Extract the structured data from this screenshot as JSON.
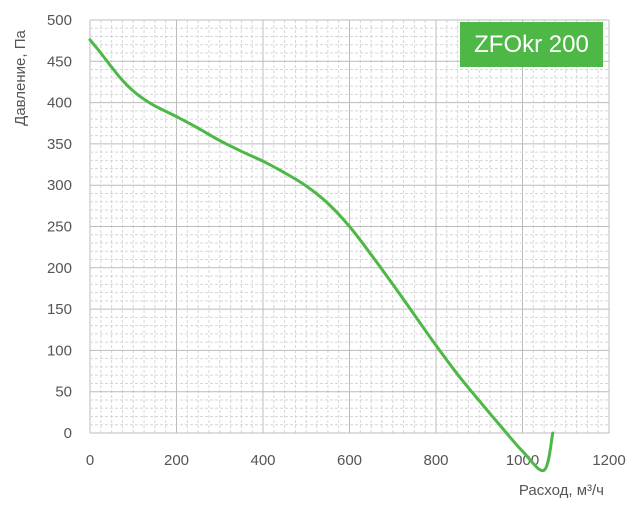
{
  "chart_data": {
    "type": "line",
    "title": "ZFOkr 200",
    "xlabel": "Расход, м³/ч",
    "ylabel": "Давление, Па",
    "xlim": [
      0,
      1200
    ],
    "ylim": [
      0,
      500
    ],
    "x_ticks": [
      "0",
      "200",
      "400",
      "600",
      "800",
      "1000",
      "1200"
    ],
    "y_ticks": [
      "0",
      "50",
      "100",
      "150",
      "200",
      "250",
      "300",
      "350",
      "400",
      "450",
      "500"
    ],
    "grid": true,
    "legend": "none",
    "series": [
      {
        "color": "#4db846",
        "x": [
          0,
          25,
          50,
          75,
          100,
          125,
          150,
          200,
          250,
          300,
          350,
          400,
          450,
          500,
          550,
          600,
          650,
          700,
          750,
          800,
          850,
          900,
          950,
          1000,
          1050,
          1070
        ],
        "y": [
          476,
          460,
          443,
          427,
          414,
          404,
          396,
          383,
          369,
          354,
          341,
          329,
          315,
          299,
          278,
          250,
          216,
          180,
          143,
          106,
          71,
          39,
          8,
          -22,
          -45,
          0
        ]
      }
    ]
  }
}
